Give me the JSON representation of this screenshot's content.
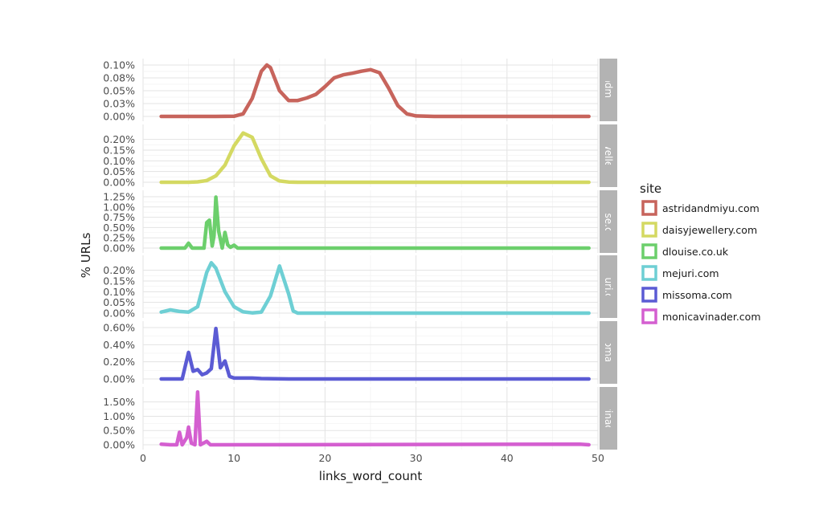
{
  "chart_data": {
    "type": "line",
    "xlabel": "links_word_count",
    "ylabel": "% URLs",
    "xlim": [
      0,
      50
    ],
    "x_ticks": [
      "0",
      "10",
      "20",
      "30",
      "40",
      "50"
    ],
    "grid": true,
    "legend": {
      "title": "site",
      "placement": "right"
    },
    "panels": [
      {
        "name": "astridandmiyu.com",
        "strip_label": "dandmiyu.",
        "color": "#c7645c",
        "ylim": [
          0,
          0.001
        ],
        "y_ticks": [
          {
            "value": 0.0,
            "label": "0.00%"
          },
          {
            "value": 0.00025,
            "label": "0.03%"
          },
          {
            "value": 0.0005,
            "label": "0.05%"
          },
          {
            "value": 0.00075,
            "label": "0.08%"
          },
          {
            "value": 0.001,
            "label": "0.10%"
          }
        ],
        "points": [
          [
            2,
            0
          ],
          [
            8,
            0
          ],
          [
            10,
            3.5e-06
          ],
          [
            11,
            5e-05
          ],
          [
            12,
            0.00035
          ],
          [
            13,
            0.00088
          ],
          [
            13.6,
            0.001
          ],
          [
            14,
            0.00095
          ],
          [
            15,
            0.0005
          ],
          [
            16,
            0.00031
          ],
          [
            17,
            0.00031
          ],
          [
            18,
            0.00036
          ],
          [
            19,
            0.00043
          ],
          [
            20,
            0.00058
          ],
          [
            21,
            0.00075
          ],
          [
            22,
            0.00081
          ],
          [
            23,
            0.00084
          ],
          [
            24,
            0.00088
          ],
          [
            25,
            0.00091
          ],
          [
            26,
            0.00085
          ],
          [
            27,
            0.00055
          ],
          [
            28,
            0.00021
          ],
          [
            29,
            5e-05
          ],
          [
            30,
            1e-05
          ],
          [
            32,
            0
          ],
          [
            49,
            0
          ]
        ]
      },
      {
        "name": "daisyjewellery.com",
        "strip_label": "yjewellery.c",
        "color": "#d4d962",
        "ylim": [
          0,
          0.0024
        ],
        "y_ticks": [
          {
            "value": 0.0,
            "label": "0.00%"
          },
          {
            "value": 0.0005,
            "label": "0.05%"
          },
          {
            "value": 0.001,
            "label": "0.10%"
          },
          {
            "value": 0.0015,
            "label": "0.15%"
          },
          {
            "value": 0.002,
            "label": "0.20%"
          }
        ],
        "points": [
          [
            2,
            0
          ],
          [
            5,
            0
          ],
          [
            6,
            2e-05
          ],
          [
            7,
            8e-05
          ],
          [
            8,
            0.0003
          ],
          [
            9,
            0.0008
          ],
          [
            10,
            0.0017
          ],
          [
            11,
            0.0023
          ],
          [
            12,
            0.0021
          ],
          [
            13,
            0.0011
          ],
          [
            14,
            0.0003
          ],
          [
            15,
            6e-05
          ],
          [
            16,
            1e-05
          ],
          [
            17,
            0
          ],
          [
            49,
            0
          ]
        ]
      },
      {
        "name": "dlouise.co.uk",
        "strip_label": "louise.co.u",
        "color": "#6ccf6c",
        "ylim": [
          0,
          0.0125
        ],
        "y_ticks": [
          {
            "value": 0.0,
            "label": "0.00%"
          },
          {
            "value": 0.0025,
            "label": "0.25%"
          },
          {
            "value": 0.005,
            "label": "0.50%"
          },
          {
            "value": 0.0075,
            "label": "0.75%"
          },
          {
            "value": 0.01,
            "label": "1.00%"
          },
          {
            "value": 0.0125,
            "label": "1.25%"
          }
        ],
        "points": [
          [
            2,
            0
          ],
          [
            4.6,
            0
          ],
          [
            5,
            0.0012
          ],
          [
            5.4,
            0
          ],
          [
            6.7,
            0
          ],
          [
            7,
            0.0062
          ],
          [
            7.3,
            0.0068
          ],
          [
            7.6,
            0.0005
          ],
          [
            7.8,
            0.003
          ],
          [
            8,
            0.0124
          ],
          [
            8.3,
            0.0042
          ],
          [
            8.7,
            0
          ],
          [
            9,
            0.0038
          ],
          [
            9.3,
            0.0008
          ],
          [
            9.6,
            0.0002
          ],
          [
            10,
            0.0007
          ],
          [
            10.4,
            0
          ],
          [
            49,
            0
          ]
        ]
      },
      {
        "name": "mejuri.com",
        "strip_label": "mejuri.com",
        "color": "#6ecfd4",
        "ylim": [
          0,
          0.0024
        ],
        "y_ticks": [
          {
            "value": 0.0,
            "label": "0.00%"
          },
          {
            "value": 0.0005,
            "label": "0.05%"
          },
          {
            "value": 0.001,
            "label": "0.10%"
          },
          {
            "value": 0.0015,
            "label": "0.15%"
          },
          {
            "value": 0.002,
            "label": "0.20%"
          }
        ],
        "points": [
          [
            2,
            5e-05
          ],
          [
            3,
            0.00015
          ],
          [
            4,
            8e-05
          ],
          [
            5,
            5e-05
          ],
          [
            6,
            0.0003
          ],
          [
            7,
            0.0019
          ],
          [
            7.5,
            0.00235
          ],
          [
            8,
            0.0021
          ],
          [
            9,
            0.001
          ],
          [
            10,
            0.0003
          ],
          [
            11,
            6e-05
          ],
          [
            12,
            1e-05
          ],
          [
            13,
            5e-05
          ],
          [
            14,
            0.0008
          ],
          [
            15,
            0.0022
          ],
          [
            16,
            0.0009
          ],
          [
            16.5,
            0.0001
          ],
          [
            17,
            0
          ],
          [
            49,
            0
          ]
        ]
      },
      {
        "name": "missoma.com",
        "strip_label": "issoma.co",
        "color": "#5b5bd4",
        "ylim": [
          0,
          0.006
        ],
        "y_ticks": [
          {
            "value": 0.0,
            "label": "0.00%"
          },
          {
            "value": 0.002,
            "label": "0.20%"
          },
          {
            "value": 0.004,
            "label": "0.40%"
          },
          {
            "value": 0.006,
            "label": "0.60%"
          }
        ],
        "points": [
          [
            2,
            0
          ],
          [
            4.3,
            0
          ],
          [
            5,
            0.0031
          ],
          [
            5.5,
            0.0009
          ],
          [
            6,
            0.0011
          ],
          [
            6.5,
            0.0005
          ],
          [
            7,
            0.0007
          ],
          [
            7.5,
            0.0012
          ],
          [
            8,
            0.0059
          ],
          [
            8.5,
            0.0013
          ],
          [
            9,
            0.0021
          ],
          [
            9.5,
            0.0003
          ],
          [
            10,
            0.0001
          ],
          [
            11,
            0.0001
          ],
          [
            12,
            0.0001
          ],
          [
            13,
            5e-05
          ],
          [
            16,
            0
          ],
          [
            49,
            0
          ]
        ]
      },
      {
        "name": "monicavinader.com",
        "strip_label": "cavinader.",
        "color": "#d45fd0",
        "ylim": [
          0,
          0.018
        ],
        "y_ticks": [
          {
            "value": 0.0,
            "label": "0.00%"
          },
          {
            "value": 0.005,
            "label": "0.50%"
          },
          {
            "value": 0.01,
            "label": "1.00%"
          },
          {
            "value": 0.015,
            "label": "1.50%"
          }
        ],
        "points": [
          [
            2,
            0.0002
          ],
          [
            3,
            0
          ],
          [
            3.7,
            0
          ],
          [
            4,
            0.0044
          ],
          [
            4.3,
            0
          ],
          [
            4.8,
            0.0025
          ],
          [
            5,
            0.0062
          ],
          [
            5.3,
            0.0006
          ],
          [
            5.7,
            0
          ],
          [
            6,
            0.0185
          ],
          [
            6.3,
            0
          ],
          [
            7,
            0.0012
          ],
          [
            7.4,
            0
          ],
          [
            48,
            0.0002
          ],
          [
            49,
            0
          ]
        ]
      }
    ]
  }
}
